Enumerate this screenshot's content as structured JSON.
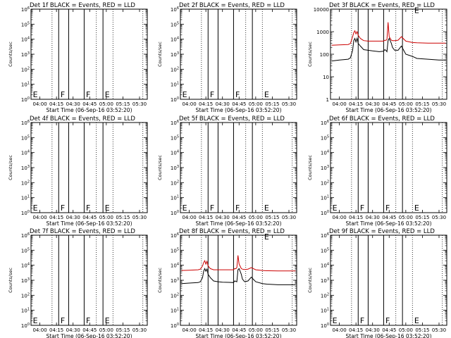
{
  "chart_data": [
    {
      "type": "line",
      "title": "Det 1f BLACK = Events, RED = LLD",
      "xlabel": "Start Time (06-Sep-16 03:52:20)",
      "ylabel": "Counts/sec",
      "y_scale": "log",
      "xlim": [
        "03:52",
        "05:37"
      ],
      "ylim": [
        1,
        1000000
      ],
      "xticks": [
        "04:00",
        "04:15",
        "04:30",
        "04:45",
        "05:00",
        "05:15",
        "05:30"
      ],
      "yticks": [
        "10^0",
        "10^1",
        "10^2",
        "10^3",
        "10^4",
        "10^5",
        "10^6"
      ],
      "solid_vlines": [
        "04:17",
        "04:26",
        "04:40",
        "04:57"
      ],
      "dotted_vlines": [
        "04:11",
        "04:51",
        "05:06",
        "05:33"
      ],
      "marker_labels": [
        {
          "text": "E",
          "x": "03:53"
        },
        {
          "text": "F",
          "x": "04:18"
        },
        {
          "text": "F",
          "x": "04:41"
        },
        {
          "text": "E",
          "x": "04:58"
        }
      ],
      "series": []
    },
    {
      "type": "line",
      "title": "Det 2f BLACK = Events, RED = LLD",
      "xlabel": "Start Time (06-Sep-16 03:52:20)",
      "ylabel": "Counts/sec",
      "y_scale": "log",
      "xlim": [
        "03:52",
        "05:37"
      ],
      "ylim": [
        1,
        1000000
      ],
      "xticks": [
        "04:00",
        "04:15",
        "04:30",
        "04:45",
        "05:00",
        "05:15",
        "05:30"
      ],
      "yticks": [
        "10^0",
        "10^1",
        "10^2",
        "10^3",
        "10^4",
        "10^5",
        "10^6"
      ],
      "solid_vlines": [
        "04:17",
        "04:26",
        "04:40",
        "04:57"
      ],
      "dotted_vlines": [
        "04:11",
        "04:51",
        "05:06",
        "05:33"
      ],
      "marker_labels": [
        {
          "text": "E",
          "x": "03:53"
        },
        {
          "text": "F",
          "x": "04:18"
        },
        {
          "text": "F",
          "x": "04:41"
        },
        {
          "text": "E",
          "x": "05:07"
        }
      ],
      "series": []
    },
    {
      "type": "line",
      "title": "Det 3f BLACK = Events, RED = LLD",
      "xlabel": "Start Time (06-Sep-16 03:52:20)",
      "ylabel": "Counts/sec",
      "y_scale": "log",
      "xlim": [
        "03:52",
        "05:37"
      ],
      "ylim": [
        1,
        10000
      ],
      "xticks": [
        "04:00",
        "04:15",
        "04:30",
        "04:45",
        "05:00",
        "05:15",
        "05:30"
      ],
      "yticks": [
        "1",
        "10",
        "100",
        "1000",
        "10000"
      ],
      "solid_vlines": [
        "04:17",
        "04:26",
        "04:40",
        "04:57"
      ],
      "dotted_vlines": [
        "04:11",
        "04:51",
        "05:06",
        "05:33"
      ],
      "marker_labels": [
        {
          "text": "E",
          "x": "05:07",
          "y": 9000
        }
      ],
      "series": [
        {
          "color": "#000000",
          "x": [
            "03:53",
            "04:00",
            "04:08",
            "04:10",
            "04:12",
            "04:13",
            "04:14",
            "04:15",
            "04:16",
            "04:17",
            "04:19",
            "04:22",
            "04:26",
            "04:30",
            "04:36",
            "04:40",
            "04:41",
            "04:42",
            "04:43",
            "04:44",
            "04:45",
            "04:47",
            "04:48",
            "04:50",
            "04:53",
            "04:56",
            "05:00",
            "05:06",
            "05:10",
            "05:20",
            "05:30",
            "05:36"
          ],
          "y": [
            50,
            55,
            60,
            70,
            150,
            400,
            500,
            350,
            500,
            300,
            230,
            160,
            150,
            140,
            130,
            135,
            160,
            150,
            130,
            400,
            500,
            300,
            200,
            150,
            150,
            230,
            100,
            80,
            65,
            60,
            55,
            55
          ]
        },
        {
          "color": "#cc0000",
          "x": [
            "03:53",
            "04:00",
            "04:08",
            "04:10",
            "04:12",
            "04:13",
            "04:14",
            "04:15",
            "04:16",
            "04:17",
            "04:19",
            "04:22",
            "04:26",
            "04:30",
            "04:36",
            "04:40",
            "04:41",
            "04:42",
            "04:43",
            "04:44",
            "04:45",
            "04:47",
            "04:48",
            "04:50",
            "04:53",
            "04:56",
            "05:00",
            "05:06",
            "05:10",
            "05:20",
            "05:30",
            "05:36"
          ],
          "y": [
            250,
            260,
            270,
            300,
            600,
            900,
            1100,
            800,
            1000,
            700,
            500,
            400,
            380,
            380,
            380,
            380,
            420,
            410,
            450,
            2600,
            600,
            420,
            400,
            400,
            420,
            600,
            380,
            330,
            320,
            310,
            310,
            310
          ]
        }
      ]
    },
    {
      "type": "line",
      "title": "Det 4f BLACK = Events, RED = LLD",
      "xlabel": "Start Time (06-Sep-16 03:52:20)",
      "ylabel": "Counts/sec",
      "y_scale": "log",
      "xlim": [
        "03:52",
        "05:37"
      ],
      "ylim": [
        1,
        1000000
      ],
      "xticks": [
        "04:00",
        "04:15",
        "04:30",
        "04:45",
        "05:00",
        "05:15",
        "05:30"
      ],
      "yticks": [
        "10^0",
        "10^1",
        "10^2",
        "10^3",
        "10^4",
        "10^5",
        "10^6"
      ],
      "solid_vlines": [
        "04:17",
        "04:26",
        "04:40",
        "04:57"
      ],
      "dotted_vlines": [
        "04:11",
        "04:51",
        "05:06",
        "05:33"
      ],
      "marker_labels": [
        {
          "text": "E",
          "x": "03:53"
        },
        {
          "text": "F",
          "x": "04:18"
        },
        {
          "text": "F",
          "x": "04:41"
        },
        {
          "text": "E",
          "x": "04:58"
        }
      ],
      "series": []
    },
    {
      "type": "line",
      "title": "Det 5f BLACK = Events, RED = LLD",
      "xlabel": "Start Time (06-Sep-16 03:52:20)",
      "ylabel": "Counts/sec",
      "y_scale": "log",
      "xlim": [
        "03:52",
        "05:37"
      ],
      "ylim": [
        1,
        1000000
      ],
      "xticks": [
        "04:00",
        "04:15",
        "04:30",
        "04:45",
        "05:00",
        "05:15",
        "05:30"
      ],
      "yticks": [
        "10^0",
        "10^1",
        "10^2",
        "10^3",
        "10^4",
        "10^5",
        "10^6"
      ],
      "solid_vlines": [
        "04:17",
        "04:26",
        "04:40",
        "04:57"
      ],
      "dotted_vlines": [
        "04:11",
        "04:51",
        "05:06",
        "05:33"
      ],
      "marker_labels": [
        {
          "text": "E",
          "x": "03:53"
        },
        {
          "text": "F",
          "x": "04:18"
        },
        {
          "text": "F",
          "x": "04:41"
        },
        {
          "text": "E",
          "x": "05:07"
        }
      ],
      "series": []
    },
    {
      "type": "line",
      "title": "Det 6f BLACK = Events, RED = LLD",
      "xlabel": "Start Time (06-Sep-16 03:52:20)",
      "ylabel": "Counts/sec",
      "y_scale": "log",
      "xlim": [
        "03:52",
        "05:37"
      ],
      "ylim": [
        1,
        1000000
      ],
      "xticks": [
        "04:00",
        "04:15",
        "04:30",
        "04:45",
        "05:00",
        "05:15",
        "05:30"
      ],
      "yticks": [
        "10^0",
        "10^1",
        "10^2",
        "10^3",
        "10^4",
        "10^5",
        "10^6"
      ],
      "solid_vlines": [
        "04:17",
        "04:26",
        "04:40",
        "04:57"
      ],
      "dotted_vlines": [
        "04:11",
        "04:51",
        "05:06",
        "05:33"
      ],
      "marker_labels": [
        {
          "text": "E",
          "x": "03:53"
        },
        {
          "text": "F",
          "x": "04:18"
        },
        {
          "text": "F",
          "x": "04:41"
        },
        {
          "text": "E",
          "x": "05:07"
        }
      ],
      "series": []
    },
    {
      "type": "line",
      "title": "Det 7f BLACK = Events, RED = LLD",
      "xlabel": "Start Time (06-Sep-16 03:52:20)",
      "ylabel": "Counts/sec",
      "y_scale": "log",
      "xlim": [
        "03:52",
        "05:37"
      ],
      "ylim": [
        1,
        1000000
      ],
      "xticks": [
        "04:00",
        "04:15",
        "04:30",
        "04:45",
        "05:00",
        "05:15",
        "05:30"
      ],
      "yticks": [
        "10^0",
        "10^1",
        "10^2",
        "10^3",
        "10^4",
        "10^5",
        "10^6"
      ],
      "solid_vlines": [
        "04:17",
        "04:26",
        "04:40",
        "04:57"
      ],
      "dotted_vlines": [
        "04:11",
        "04:51",
        "05:06",
        "05:33"
      ],
      "marker_labels": [
        {
          "text": "E",
          "x": "03:53"
        },
        {
          "text": "F",
          "x": "04:18"
        },
        {
          "text": "F",
          "x": "04:41"
        },
        {
          "text": "E",
          "x": "04:58"
        }
      ],
      "series": []
    },
    {
      "type": "line",
      "title": "Det 8f BLACK = Events, RED = LLD",
      "xlabel": "Start Time (06-Sep-16 03:52:20)",
      "ylabel": "Counts/sec",
      "y_scale": "log",
      "xlim": [
        "03:52",
        "05:37"
      ],
      "ylim": [
        1,
        1000000
      ],
      "xticks": [
        "04:00",
        "04:15",
        "04:30",
        "04:45",
        "05:00",
        "05:15",
        "05:30"
      ],
      "yticks": [
        "10^0",
        "10^1",
        "10^2",
        "10^3",
        "10^4",
        "10^5",
        "10^6"
      ],
      "solid_vlines": [
        "04:17",
        "04:26",
        "04:40",
        "04:57"
      ],
      "dotted_vlines": [
        "04:11",
        "04:51",
        "05:06",
        "05:33"
      ],
      "marker_labels": [
        {
          "text": "E",
          "x": "05:07",
          "y": 800000
        }
      ],
      "series": [
        {
          "color": "#000000",
          "x": [
            "03:53",
            "04:00",
            "04:08",
            "04:10",
            "04:12",
            "04:13",
            "04:14",
            "04:15",
            "04:16",
            "04:17",
            "04:19",
            "04:22",
            "04:26",
            "04:30",
            "04:36",
            "04:40",
            "04:41",
            "04:42",
            "04:43",
            "04:44",
            "04:45",
            "04:47",
            "04:48",
            "04:50",
            "04:53",
            "04:56",
            "05:00",
            "05:06",
            "05:10",
            "05:20",
            "05:30",
            "05:36"
          ],
          "y": [
            600,
            650,
            700,
            800,
            1500,
            4000,
            6000,
            4000,
            5500,
            2500,
            1500,
            900,
            800,
            750,
            720,
            700,
            900,
            850,
            800,
            5000,
            6000,
            2500,
            1200,
            800,
            900,
            1600,
            800,
            600,
            550,
            500,
            500,
            500
          ]
        },
        {
          "color": "#cc0000",
          "x": [
            "03:53",
            "04:00",
            "04:08",
            "04:10",
            "04:12",
            "04:13",
            "04:14",
            "04:15",
            "04:16",
            "04:17",
            "04:19",
            "04:22",
            "04:26",
            "04:30",
            "04:36",
            "04:40",
            "04:41",
            "04:42",
            "04:43",
            "04:44",
            "04:45",
            "04:47",
            "04:48",
            "04:50",
            "04:53",
            "04:56",
            "05:00",
            "05:06",
            "05:10",
            "05:20",
            "05:30",
            "05:36"
          ],
          "y": [
            4500,
            4700,
            5000,
            5500,
            9000,
            15000,
            20000,
            12000,
            18000,
            9000,
            6000,
            5000,
            5000,
            5000,
            5000,
            5000,
            6000,
            5800,
            7000,
            45000,
            12000,
            6000,
            5500,
            5200,
            5500,
            7000,
            5000,
            4500,
            4300,
            4200,
            4200,
            4200
          ]
        }
      ]
    },
    {
      "type": "line",
      "title": "Det 9f BLACK = Events, RED = LLD",
      "xlabel": "Start Time (06-Sep-16 03:52:20)",
      "ylabel": "Counts/sec",
      "y_scale": "log",
      "xlim": [
        "03:52",
        "05:37"
      ],
      "ylim": [
        1,
        1000000
      ],
      "xticks": [
        "04:00",
        "04:15",
        "04:30",
        "04:45",
        "05:00",
        "05:15",
        "05:30"
      ],
      "yticks": [
        "10^0",
        "10^1",
        "10^2",
        "10^3",
        "10^4",
        "10^5",
        "10^6"
      ],
      "solid_vlines": [
        "04:17",
        "04:26",
        "04:40",
        "04:57"
      ],
      "dotted_vlines": [
        "04:11",
        "04:51",
        "05:06",
        "05:33"
      ],
      "marker_labels": [
        {
          "text": "E",
          "x": "03:53"
        },
        {
          "text": "F",
          "x": "04:18"
        },
        {
          "text": "F",
          "x": "04:41"
        },
        {
          "text": "E",
          "x": "05:07"
        }
      ],
      "series": []
    }
  ]
}
